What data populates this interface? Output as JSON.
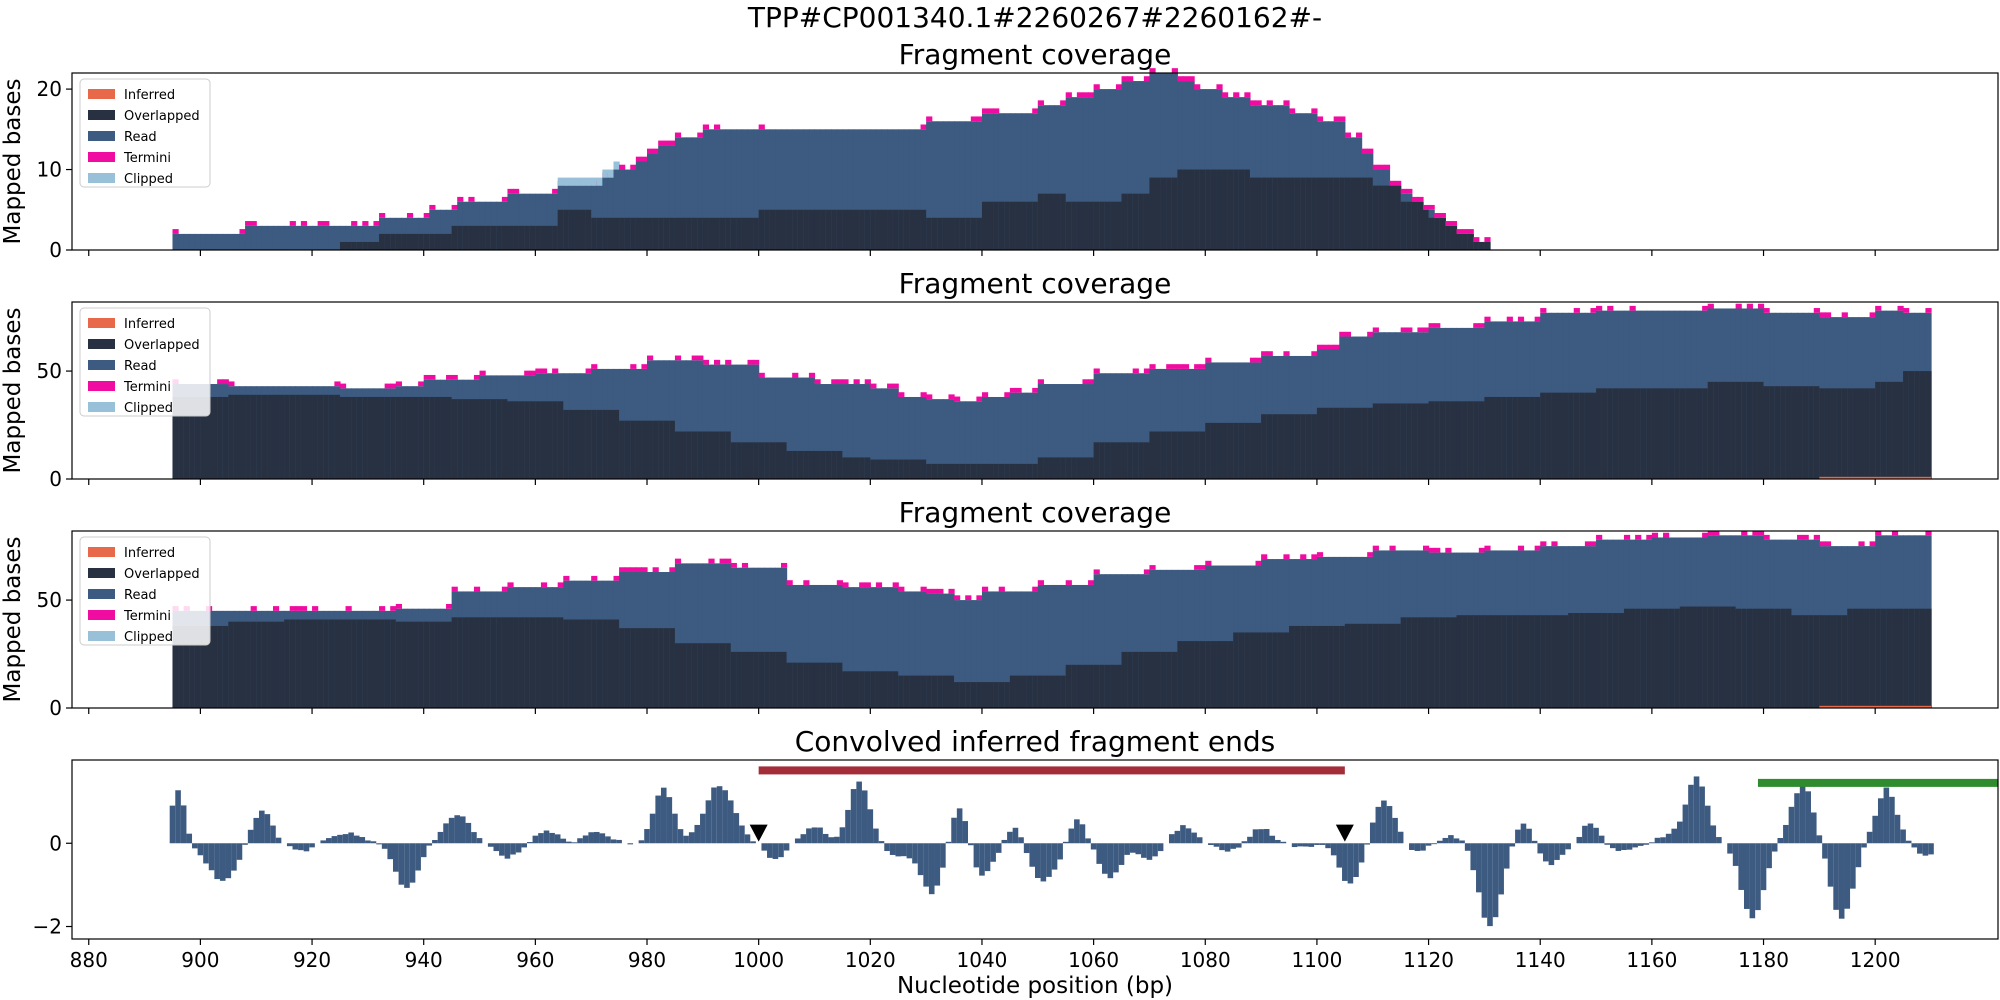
{
  "figure": {
    "suptitle": "TPP#CP001340.1#2260267#2260162#-",
    "xlabel": "Nucleotide position (bp)",
    "x_ticks": [
      880,
      900,
      920,
      940,
      960,
      980,
      1000,
      1020,
      1040,
      1060,
      1080,
      1100,
      1120,
      1140,
      1160,
      1180,
      1200
    ]
  },
  "colors": {
    "inferred": "#e8684a",
    "overlapped": "#283142",
    "read": "#3d5a80",
    "termini": "#f00ca0",
    "clipped": "#98c1d9",
    "bar": "#3d5a80",
    "red_region": "#a32e3a",
    "green_region": "#2e8b2e",
    "marker": "#000000"
  },
  "legend": [
    "Inferred",
    "Overlapped",
    "Read",
    "Termini",
    "Clipped"
  ],
  "chart_data": [
    {
      "type": "area",
      "title": "Fragment coverage",
      "ylabel": "Mapped bases",
      "xlim": [
        877,
        1222
      ],
      "ylim": [
        0,
        22
      ],
      "y_ticks": [
        0,
        10,
        20
      ],
      "legend_placement": "top-left",
      "x_range": [
        895,
        1131
      ],
      "read_top": {
        "x": [
          895,
          905,
          908,
          915,
          928,
          932,
          936,
          941,
          946,
          955,
          961,
          964,
          970,
          972,
          974,
          978,
          980,
          982,
          985,
          990,
          995,
          1000,
          1010,
          1020,
          1030,
          1040,
          1045,
          1050,
          1055,
          1060,
          1065,
          1070,
          1075,
          1078,
          1083,
          1088,
          1095,
          1100,
          1105,
          1108,
          1110,
          1113,
          1115,
          1117,
          1119,
          1121,
          1123,
          1125,
          1128,
          1131
        ],
        "y": [
          2,
          2,
          3,
          3,
          3,
          4,
          4,
          5,
          6,
          7,
          7,
          8,
          8,
          9,
          10,
          11,
          12,
          13,
          14,
          15,
          15,
          15,
          15,
          15,
          16,
          17,
          17,
          18,
          19,
          20,
          21,
          22,
          21,
          20,
          19,
          18,
          17,
          16,
          14,
          12,
          10,
          8,
          7,
          6,
          5,
          4,
          3,
          2,
          1,
          0
        ]
      },
      "overlapped_top": {
        "x": [
          895,
          925,
          932,
          945,
          955,
          964,
          970,
          980,
          1000,
          1010,
          1020,
          1030,
          1040,
          1050,
          1055,
          1060,
          1065,
          1070,
          1075,
          1080,
          1088,
          1095,
          1100,
          1105,
          1110,
          1115,
          1120,
          1125,
          1128,
          1131
        ],
        "y": [
          0,
          1,
          2,
          3,
          3,
          5,
          4,
          4,
          5,
          5,
          5,
          4,
          6,
          7,
          6,
          6,
          7,
          9,
          10,
          10,
          9,
          9,
          9,
          9,
          8,
          6,
          4,
          2,
          1,
          0
        ]
      },
      "clipped_extra": {
        "x_from": 964,
        "x_to": 975,
        "value": 1
      }
    },
    {
      "type": "area",
      "title": "Fragment coverage",
      "ylabel": "Mapped bases",
      "xlim": [
        877,
        1222
      ],
      "ylim": [
        0,
        82
      ],
      "y_ticks": [
        0,
        50
      ],
      "legend_placement": "top-left",
      "x_range": [
        895,
        1210
      ],
      "read_top": {
        "x": [
          895,
          905,
          915,
          925,
          935,
          940,
          950,
          960,
          970,
          980,
          990,
          1000,
          1010,
          1020,
          1025,
          1030,
          1035,
          1040,
          1045,
          1050,
          1060,
          1070,
          1080,
          1090,
          1100,
          1104,
          1110,
          1120,
          1130,
          1140,
          1150,
          1160,
          1170,
          1180,
          1190,
          1200,
          1205,
          1210
        ],
        "y": [
          44,
          43,
          43,
          42,
          43,
          46,
          48,
          49,
          51,
          55,
          53,
          47,
          44,
          42,
          38,
          37,
          36,
          38,
          40,
          44,
          49,
          51,
          54,
          57,
          60,
          66,
          68,
          70,
          73,
          77,
          78,
          78,
          79,
          77,
          75,
          78,
          77,
          74
        ]
      },
      "overlapped_top": {
        "x": [
          895,
          905,
          915,
          925,
          935,
          945,
          955,
          965,
          975,
          985,
          995,
          1005,
          1015,
          1020,
          1030,
          1040,
          1050,
          1060,
          1070,
          1080,
          1090,
          1100,
          1110,
          1120,
          1130,
          1140,
          1150,
          1160,
          1170,
          1180,
          1190,
          1200,
          1205,
          1210
        ],
        "y": [
          38,
          39,
          39,
          38,
          38,
          37,
          36,
          32,
          27,
          22,
          17,
          13,
          10,
          9,
          7,
          7,
          10,
          17,
          22,
          26,
          30,
          33,
          35,
          36,
          38,
          40,
          42,
          42,
          45,
          43,
          42,
          45,
          50,
          46
        ]
      },
      "inferred_segment": {
        "x_from": 1190,
        "x_to": 1210,
        "value": 1
      }
    },
    {
      "type": "area",
      "title": "Fragment coverage",
      "ylabel": "Mapped bases",
      "xlim": [
        877,
        1222
      ],
      "ylim": [
        0,
        82
      ],
      "y_ticks": [
        0,
        50
      ],
      "legend_placement": "top-left",
      "x_range": [
        895,
        1210
      ],
      "read_top": {
        "x": [
          895,
          905,
          915,
          925,
          935,
          945,
          955,
          965,
          975,
          985,
          995,
          1005,
          1015,
          1025,
          1030,
          1035,
          1040,
          1050,
          1060,
          1070,
          1080,
          1090,
          1100,
          1110,
          1120,
          1130,
          1140,
          1150,
          1160,
          1170,
          1180,
          1190,
          1200,
          1210
        ],
        "y": [
          45,
          45,
          45,
          45,
          46,
          54,
          56,
          59,
          63,
          67,
          65,
          57,
          56,
          54,
          53,
          50,
          54,
          57,
          62,
          64,
          66,
          69,
          70,
          73,
          72,
          73,
          75,
          78,
          79,
          80,
          78,
          75,
          80,
          74
        ]
      },
      "overlapped_top": {
        "x": [
          895,
          905,
          915,
          925,
          935,
          945,
          955,
          965,
          975,
          985,
          995,
          1005,
          1015,
          1025,
          1035,
          1045,
          1055,
          1065,
          1075,
          1085,
          1095,
          1105,
          1115,
          1125,
          1135,
          1145,
          1155,
          1165,
          1175,
          1185,
          1195,
          1205,
          1210
        ],
        "y": [
          38,
          40,
          41,
          41,
          40,
          42,
          42,
          41,
          37,
          30,
          26,
          21,
          17,
          15,
          12,
          15,
          20,
          26,
          31,
          35,
          38,
          39,
          42,
          43,
          43,
          44,
          46,
          47,
          46,
          43,
          46,
          46,
          45
        ]
      },
      "inferred_segment": {
        "x_from": 1190,
        "x_to": 1210,
        "value": 1
      }
    },
    {
      "type": "bar",
      "title": "Convolved inferred fragment ends",
      "xlim": [
        877,
        1222
      ],
      "ylim": [
        -2.3,
        2.0
      ],
      "y_ticks": [
        -2,
        0
      ],
      "bin_width": 1,
      "x_range": [
        895,
        1210
      ],
      "peaks": [
        {
          "c": 896,
          "a": 1.3,
          "w": 1.2
        },
        {
          "c": 904,
          "a": -0.9,
          "w": 2.6
        },
        {
          "c": 911,
          "a": 0.8,
          "w": 1.8
        },
        {
          "c": 918,
          "a": -0.2,
          "w": 2
        },
        {
          "c": 926,
          "a": 0.25,
          "w": 2.5
        },
        {
          "c": 937,
          "a": -1.1,
          "w": 2
        },
        {
          "c": 946,
          "a": 0.7,
          "w": 2.2
        },
        {
          "c": 955,
          "a": -0.35,
          "w": 2
        },
        {
          "c": 962,
          "a": 0.3,
          "w": 2
        },
        {
          "c": 971,
          "a": 0.3,
          "w": 2
        },
        {
          "c": 983,
          "a": 1.3,
          "w": 1.8
        },
        {
          "c": 993,
          "a": 1.4,
          "w": 2.6
        },
        {
          "c": 1003,
          "a": -0.4,
          "w": 1.5
        },
        {
          "c": 1010,
          "a": 0.4,
          "w": 2
        },
        {
          "c": 1018,
          "a": 1.5,
          "w": 1.8
        },
        {
          "c": 1025,
          "a": -0.3,
          "w": 2
        },
        {
          "c": 1031,
          "a": -1.2,
          "w": 2
        },
        {
          "c": 1036,
          "a": 1.0,
          "w": 1.5
        },
        {
          "c": 1040,
          "a": -0.8,
          "w": 2
        },
        {
          "c": 1046,
          "a": 0.5,
          "w": 1.5
        },
        {
          "c": 1051,
          "a": -0.9,
          "w": 2.5
        },
        {
          "c": 1057,
          "a": 0.6,
          "w": 1.5
        },
        {
          "c": 1063,
          "a": -0.8,
          "w": 2
        },
        {
          "c": 1070,
          "a": -0.4,
          "w": 2
        },
        {
          "c": 1076,
          "a": 0.4,
          "w": 2
        },
        {
          "c": 1084,
          "a": -0.2,
          "w": 2
        },
        {
          "c": 1090,
          "a": 0.35,
          "w": 2
        },
        {
          "c": 1097,
          "a": -0.1,
          "w": 2
        },
        {
          "c": 1106,
          "a": -1.0,
          "w": 2
        },
        {
          "c": 1112,
          "a": 1.0,
          "w": 2
        },
        {
          "c": 1118,
          "a": -0.2,
          "w": 2
        },
        {
          "c": 1124,
          "a": 0.2,
          "w": 2
        },
        {
          "c": 1131,
          "a": -2.0,
          "w": 2
        },
        {
          "c": 1137,
          "a": 0.5,
          "w": 1.5
        },
        {
          "c": 1142,
          "a": -0.5,
          "w": 2
        },
        {
          "c": 1149,
          "a": 0.5,
          "w": 1.5
        },
        {
          "c": 1155,
          "a": -0.2,
          "w": 2
        },
        {
          "c": 1163,
          "a": 0.2,
          "w": 2
        },
        {
          "c": 1168,
          "a": 1.6,
          "w": 1.8
        },
        {
          "c": 1178,
          "a": -1.8,
          "w": 2
        },
        {
          "c": 1187,
          "a": 1.4,
          "w": 2
        },
        {
          "c": 1194,
          "a": -1.8,
          "w": 2
        },
        {
          "c": 1202,
          "a": 1.3,
          "w": 1.8
        },
        {
          "c": 1209,
          "a": -0.3,
          "w": 1.5
        }
      ],
      "regions": [
        {
          "x_from": 1000,
          "x_to": 1105,
          "y": 1.75,
          "color_key": "red_region"
        },
        {
          "x_from": 1179,
          "x_to": 1222,
          "y": 1.45,
          "color_key": "green_region"
        }
      ],
      "markers": [
        {
          "x": 1000,
          "y": 0.23
        },
        {
          "x": 1105,
          "y": 0.23
        }
      ]
    }
  ]
}
